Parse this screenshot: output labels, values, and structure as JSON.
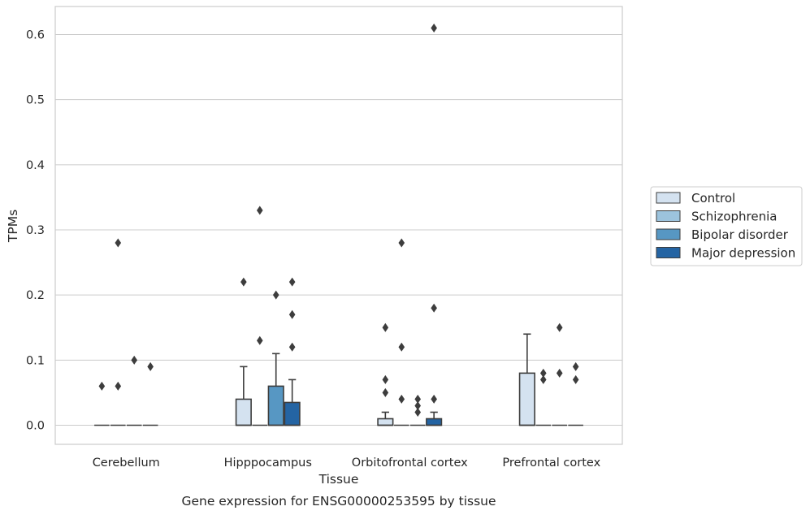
{
  "chart_data": {
    "type": "boxplot",
    "xlabel": "Tissue",
    "ylabel": "TPMs",
    "caption": "Gene expression for ENSG00000253595 by tissue",
    "ylim": [
      -0.03,
      0.642
    ],
    "yticks": [
      "0.0",
      "0.1",
      "0.2",
      "0.3",
      "0.4",
      "0.5",
      "0.6"
    ],
    "grid": "horizontal",
    "legend_position": "right",
    "categories": [
      "Cerebellum",
      "Hipppocampus",
      "Orbitofrontal cortex",
      "Prefrontal cortex"
    ],
    "series": [
      {
        "name": "Control",
        "color": "#d4e2f0",
        "boxes": [
          {
            "q1": 0,
            "median": 0,
            "q3": 0,
            "whisker_low": 0,
            "whisker_high": 0,
            "outliers": [
              0.06
            ]
          },
          {
            "q1": 0,
            "median": 0,
            "q3": 0.04,
            "whisker_low": 0,
            "whisker_high": 0.09,
            "outliers": [
              0.22
            ]
          },
          {
            "q1": 0,
            "median": 0,
            "q3": 0.01,
            "whisker_low": 0,
            "whisker_high": 0.02,
            "outliers": [
              0.05,
              0.07,
              0.15
            ]
          },
          {
            "q1": 0,
            "median": 0,
            "q3": 0.08,
            "whisker_low": 0,
            "whisker_high": 0.14,
            "outliers": []
          }
        ]
      },
      {
        "name": "Schizophrenia",
        "color": "#9cc3dd",
        "boxes": [
          {
            "q1": 0,
            "median": 0,
            "q3": 0,
            "whisker_low": 0,
            "whisker_high": 0,
            "outliers": [
              0.06,
              0.28
            ]
          },
          {
            "q1": 0,
            "median": 0,
            "q3": 0,
            "whisker_low": 0,
            "whisker_high": 0,
            "outliers": [
              0.13,
              0.33
            ]
          },
          {
            "q1": 0,
            "median": 0,
            "q3": 0,
            "whisker_low": 0,
            "whisker_high": 0,
            "outliers": [
              0.04,
              0.12,
              0.28
            ]
          },
          {
            "q1": 0,
            "median": 0,
            "q3": 0,
            "whisker_low": 0,
            "whisker_high": 0,
            "outliers": [
              0.07,
              0.08
            ]
          }
        ]
      },
      {
        "name": "Bipolar disorder",
        "color": "#5797c3",
        "boxes": [
          {
            "q1": 0,
            "median": 0,
            "q3": 0,
            "whisker_low": 0,
            "whisker_high": 0,
            "outliers": [
              0.1
            ]
          },
          {
            "q1": 0,
            "median": 0,
            "q3": 0.06,
            "whisker_low": 0,
            "whisker_high": 0.11,
            "outliers": [
              0.2
            ]
          },
          {
            "q1": 0,
            "median": 0,
            "q3": 0,
            "whisker_low": 0,
            "whisker_high": 0,
            "outliers": [
              0.02,
              0.03,
              0.04
            ]
          },
          {
            "q1": 0,
            "median": 0,
            "q3": 0,
            "whisker_low": 0,
            "whisker_high": 0,
            "outliers": [
              0.08,
              0.15
            ]
          }
        ]
      },
      {
        "name": "Major depression",
        "color": "#2464a3",
        "boxes": [
          {
            "q1": 0,
            "median": 0,
            "q3": 0,
            "whisker_low": 0,
            "whisker_high": 0,
            "outliers": [
              0.09
            ]
          },
          {
            "q1": 0,
            "median": 0,
            "q3": 0.035,
            "whisker_low": 0,
            "whisker_high": 0.07,
            "outliers": [
              0.12,
              0.17,
              0.22
            ]
          },
          {
            "q1": 0,
            "median": 0,
            "q3": 0.01,
            "whisker_low": 0,
            "whisker_high": 0.02,
            "outliers": [
              0.04,
              0.18,
              0.61
            ]
          },
          {
            "q1": 0,
            "median": 0,
            "q3": 0,
            "whisker_low": 0,
            "whisker_high": 0,
            "outliers": [
              0.07,
              0.09
            ]
          }
        ]
      }
    ]
  }
}
